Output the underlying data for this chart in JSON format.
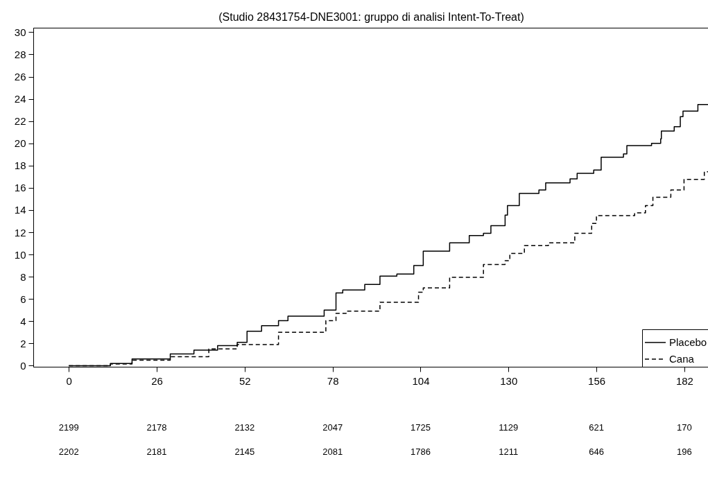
{
  "chart_data": {
    "type": "step",
    "title": "(Studio 28431754-DNE3001: gruppo di analisi Intent-To-Treat)",
    "xlim": [
      -10.5,
      189.4
    ],
    "xticks": [
      0,
      26,
      52,
      78,
      104,
      130,
      156,
      182
    ],
    "ylim": [
      -0.1,
      30.4
    ],
    "yticks": [
      0,
      2,
      4,
      6,
      8,
      10,
      12,
      14,
      16,
      18,
      20,
      22,
      24,
      26,
      28,
      30
    ],
    "grid": false,
    "legend": "bottom right",
    "series": [
      {
        "name": "Placebo",
        "color": "#000000",
        "line_style": "solid",
        "x": [
          0,
          8.6,
          12.3,
          18.7,
          30,
          37,
          44,
          49.8,
          52.7,
          57,
          62,
          64.8,
          75.5,
          79,
          81,
          87.5,
          92,
          97,
          102,
          104.8,
          112.6,
          118.4,
          122.6,
          124.8,
          129,
          129.7,
          133.2,
          139,
          141,
          148.2,
          150.3,
          155.2,
          157.4,
          164,
          165,
          172.3,
          175,
          175.2,
          179,
          180.8,
          181.6,
          186,
          189.4
        ],
        "values": [
          0,
          0,
          0.2,
          0.6,
          1.05,
          1.4,
          1.8,
          2.1,
          3.1,
          3.6,
          4.05,
          4.45,
          5,
          6.55,
          6.8,
          7.3,
          8.05,
          8.25,
          9,
          10.3,
          11.05,
          11.7,
          11.9,
          12.6,
          13.55,
          14.4,
          15.5,
          15.8,
          16.45,
          16.8,
          17.3,
          17.6,
          18.75,
          19.05,
          19.8,
          20,
          20.4,
          21.1,
          21.5,
          22.4,
          22.9,
          23.5,
          23.5
        ]
      },
      {
        "name": "Cana",
        "color": "#000000",
        "line_style": "dashed",
        "x": [
          0,
          12.3,
          18.7,
          30,
          41.4,
          49.8,
          62,
          76,
          79,
          82,
          92,
          103.4,
          104.8,
          112.6,
          122.6,
          129,
          130.4,
          134.7,
          141.8,
          149.6,
          154.6,
          156,
          167.3,
          170.5,
          172.7,
          178,
          181.9,
          187.9,
          189.4
        ],
        "values": [
          0,
          0.15,
          0.5,
          0.8,
          1.5,
          1.9,
          3,
          4.05,
          4.7,
          4.9,
          5.7,
          6.6,
          7,
          7.95,
          9.1,
          9.45,
          10.1,
          10.8,
          11.05,
          11.9,
          12.8,
          13.5,
          13.75,
          14.4,
          15.15,
          15.8,
          16.75,
          17.45,
          17.45
        ]
      }
    ],
    "annotations": [
      "2199",
      "2178",
      "2132",
      "2047",
      "1725",
      "1129",
      "621",
      "170",
      "2202",
      "2181",
      "2145",
      "2081",
      "1786",
      "1211",
      "646",
      "196"
    ]
  }
}
